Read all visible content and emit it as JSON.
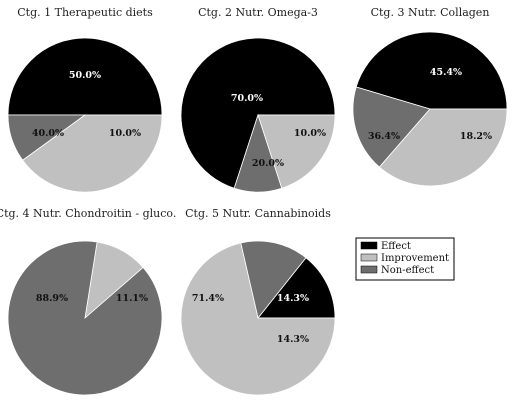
{
  "colors": {
    "effect": "#000000",
    "improvement": "#c0c0c0",
    "non_effect": "#6e6e6e",
    "slice_stroke": "#ffffff"
  },
  "legend": {
    "items": [
      {
        "label": "Effect",
        "color": "#000000"
      },
      {
        "label": "Improvement",
        "color": "#c0c0c0"
      },
      {
        "label": "Non-effect",
        "color": "#6e6e6e"
      }
    ]
  },
  "chart_data": [
    {
      "type": "pie",
      "title": "Ctg. 1 Therapeutic diets",
      "slices": [
        {
          "category": "Effect",
          "value": 50.0,
          "label": "50.0%"
        },
        {
          "category": "Non-effect",
          "value": 10.0,
          "label": "10.0%"
        },
        {
          "category": "Improvement",
          "value": 40.0,
          "label": "40.0%"
        }
      ]
    },
    {
      "type": "pie",
      "title": "Ctg. 2 Nutr. Omega-3",
      "slices": [
        {
          "category": "Effect",
          "value": 70.0,
          "label": "70.0%"
        },
        {
          "category": "Non-effect",
          "value": 10.0,
          "label": "10.0%"
        },
        {
          "category": "Improvement",
          "value": 20.0,
          "label": "20.0%"
        }
      ]
    },
    {
      "type": "pie",
      "title": "Ctg. 3 Nutr. Collagen",
      "slices": [
        {
          "category": "Effect",
          "value": 45.4,
          "label": "45.4%"
        },
        {
          "category": "Non-effect",
          "value": 18.2,
          "label": "18.2%"
        },
        {
          "category": "Improvement",
          "value": 36.4,
          "label": "36.4%"
        }
      ]
    },
    {
      "type": "pie",
      "title": "Ctg. 4 Nutr. Chondroitin - gluco.",
      "slices": [
        {
          "category": "Improvement",
          "value": 11.1,
          "label": "11.1%"
        },
        {
          "category": "Non-effect",
          "value": 88.9,
          "label": "88.9%"
        }
      ]
    },
    {
      "type": "pie",
      "title": "Ctg. 5 Nutr. Cannabinoids",
      "slices": [
        {
          "category": "Effect",
          "value": 14.3,
          "label": "14.3%"
        },
        {
          "category": "Non-effect",
          "value": 14.3,
          "label": "14.3%"
        },
        {
          "category": "Improvement",
          "value": 71.4,
          "label": "71.4%"
        }
      ]
    }
  ]
}
